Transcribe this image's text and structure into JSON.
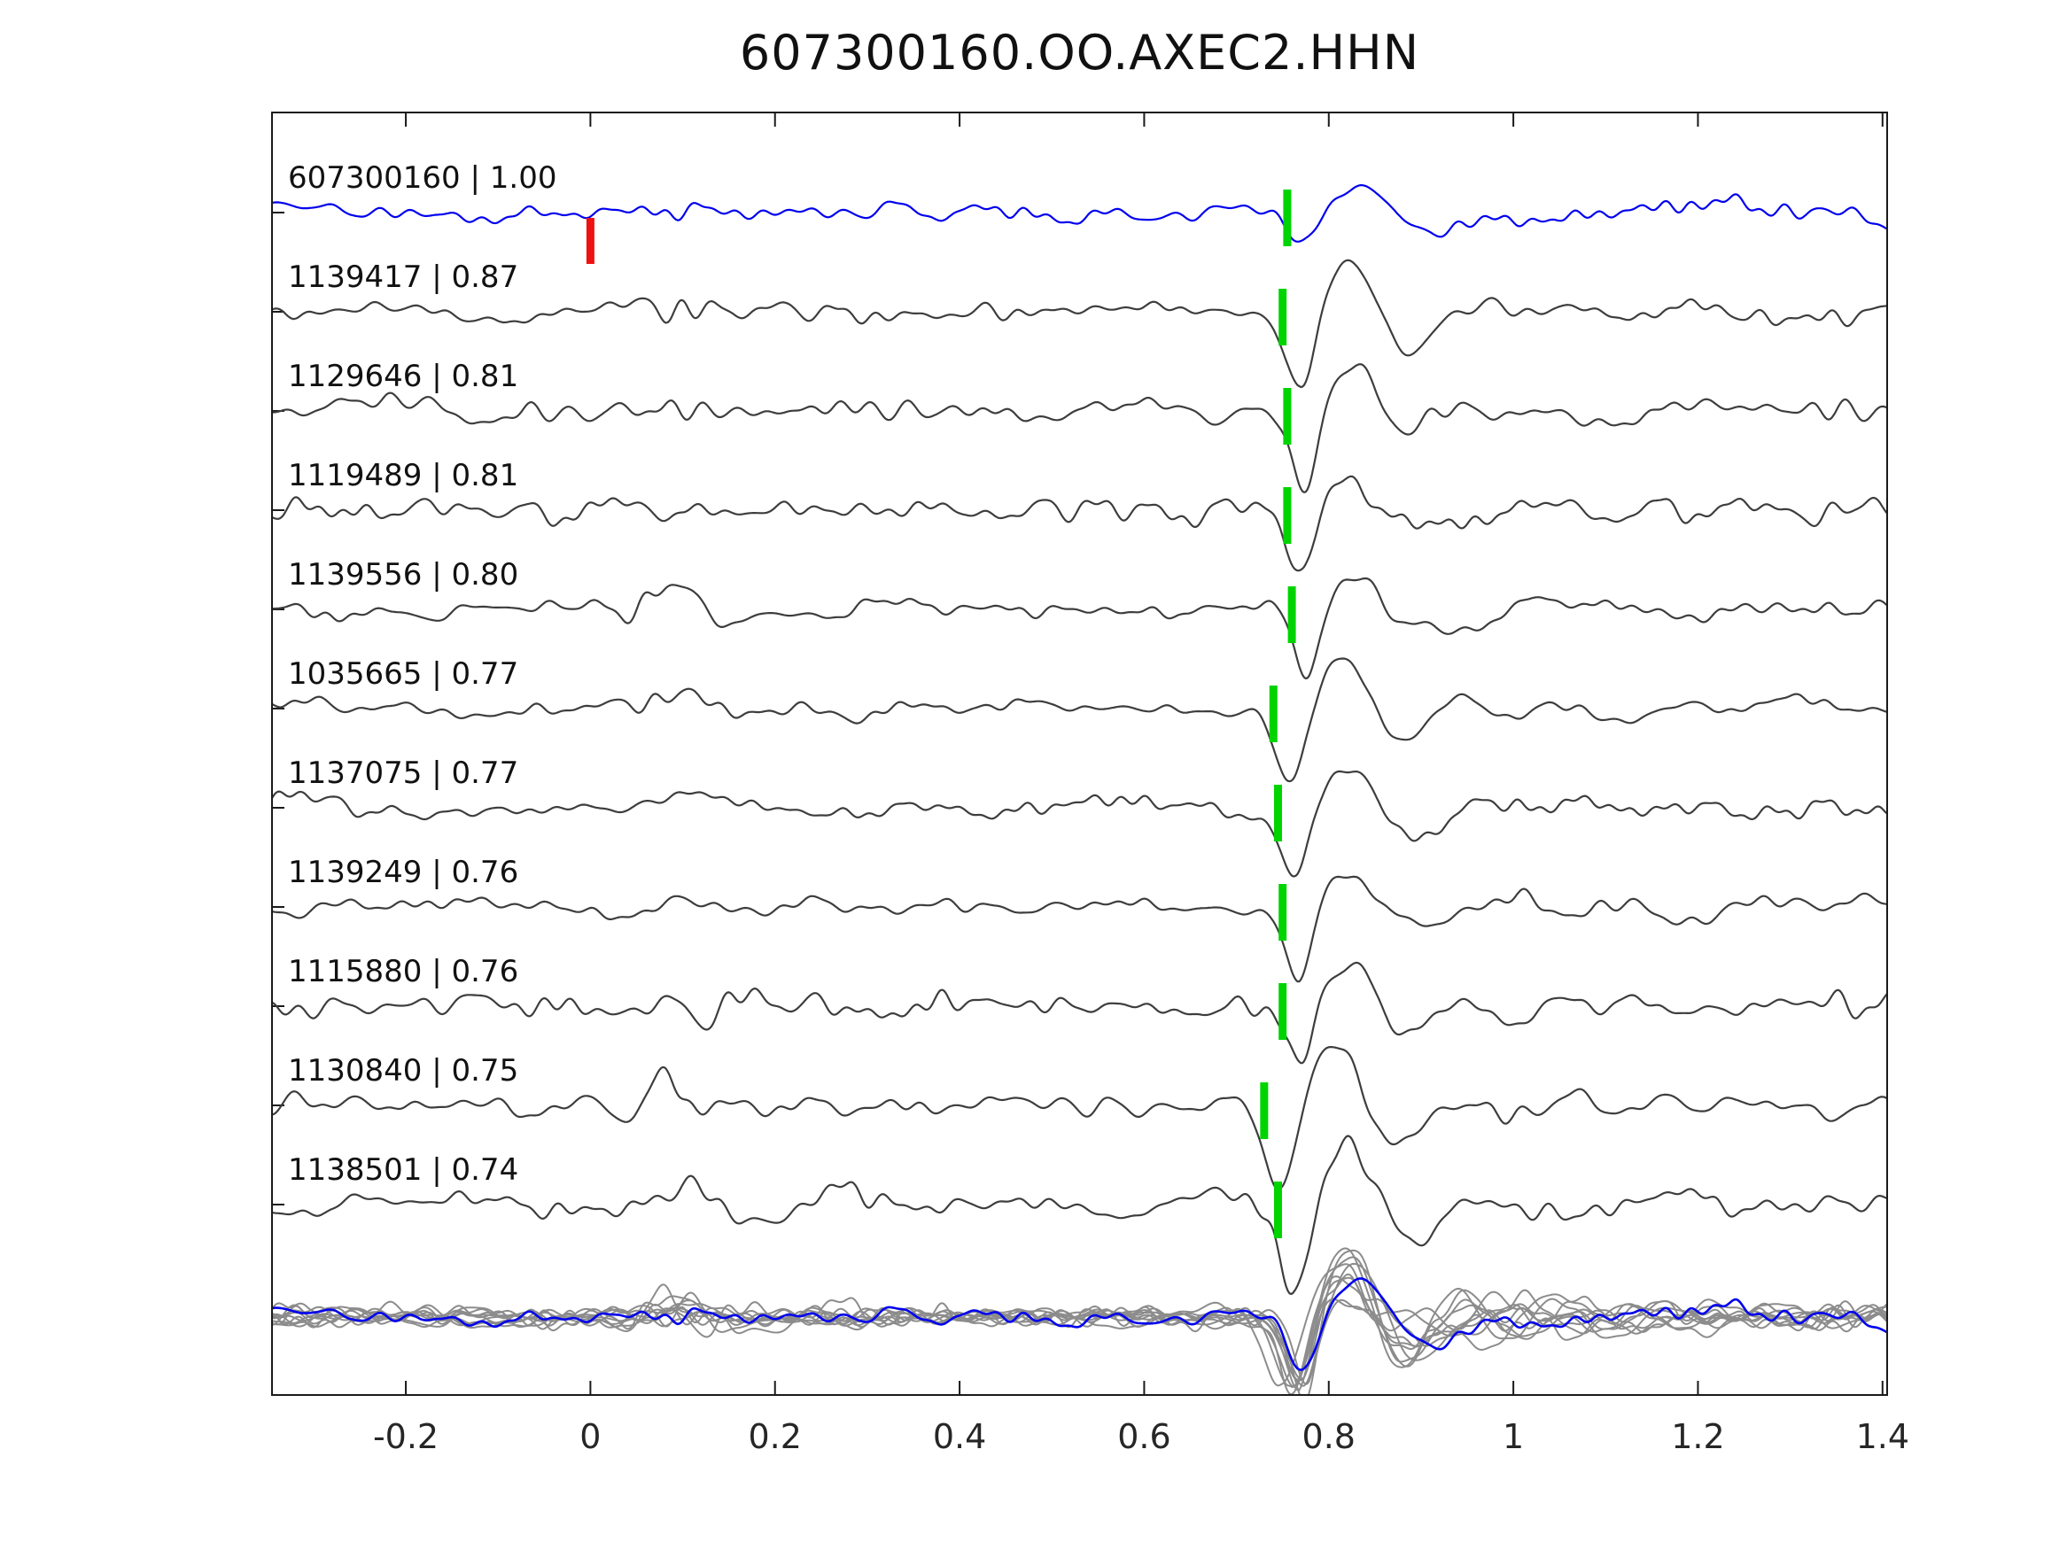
{
  "title": "607300160.OO.AXEC2.HHN",
  "colors": {
    "background": "#ffffff",
    "axis": "#1a1a1a",
    "reference_trace": "#0000ee",
    "match_trace": "#3d3d3d",
    "overlay_trace": "#8c8c8c",
    "pick_marker": "#00d400",
    "reference_marker": "#ee1111",
    "label_text": "#111111",
    "tick_text": "#262626"
  },
  "chart_data": {
    "type": "line",
    "title": "607300160.OO.AXEC2.HHN",
    "description": "Waveform similarity plot: reference trace 607300160 (blue) on top with red zero-time marker, followed by 10 matched event traces (dark gray) labeled 'event id | correlation'. Green vertical ticks mark the aligned pick time near x = 0.75. Bottom row shows all traces superimposed (gray) with the reference trace overlaid in blue.",
    "xlim": [
      -0.345,
      1.405
    ],
    "x_ticks": [
      -0.2,
      0,
      0.2,
      0.4,
      0.6,
      0.8,
      1,
      1.2,
      1.4
    ],
    "x_tick_labels": [
      "-0.2",
      "0",
      "0.2",
      "0.4",
      "0.6",
      "0.8",
      "1",
      "1.2",
      "1.4"
    ],
    "traces": [
      {
        "id": "607300160",
        "correlation": "1.00",
        "label": "607300160 | 1.00",
        "color": "#0000ee",
        "pick_x": 0.755,
        "ref_marker_x": 0,
        "seed": 101,
        "noise_amp": 6.5,
        "event_amp": 50,
        "burst": 0.3
      },
      {
        "id": "1139417",
        "correlation": "0.87",
        "label": "1139417 | 0.87",
        "color": "#3d3d3d",
        "pick_x": 0.75,
        "seed": 102,
        "noise_amp": 5.5,
        "event_amp": 88,
        "burst": 0.7
      },
      {
        "id": "1129646",
        "correlation": "0.81",
        "label": "1129646 | 0.81",
        "color": "#3d3d3d",
        "pick_x": 0.755,
        "seed": 103,
        "noise_amp": 7.5,
        "event_amp": 72,
        "burst": 0.5
      },
      {
        "id": "1119489",
        "correlation": "0.81",
        "label": "1119489 | 0.81",
        "color": "#3d3d3d",
        "pick_x": 0.755,
        "seed": 104,
        "noise_amp": 7.0,
        "event_amp": 74,
        "burst": 0.4
      },
      {
        "id": "1139556",
        "correlation": "0.80",
        "label": "1139556 | 0.80",
        "color": "#3d3d3d",
        "pick_x": 0.76,
        "seed": 105,
        "noise_amp": 6.5,
        "event_amp": 80,
        "burst": 1.1
      },
      {
        "id": "1035665",
        "correlation": "0.77",
        "label": "1035665 | 0.77",
        "color": "#3d3d3d",
        "pick_x": 0.74,
        "seed": 106,
        "noise_amp": 6.0,
        "event_amp": 82,
        "burst": 0.9
      },
      {
        "id": "1137075",
        "correlation": "0.77",
        "label": "1137075 | 0.77",
        "color": "#3d3d3d",
        "pick_x": 0.745,
        "seed": 107,
        "noise_amp": 6.0,
        "event_amp": 76,
        "burst": 0.8
      },
      {
        "id": "1139249",
        "correlation": "0.76",
        "label": "1139249 | 0.76",
        "color": "#3d3d3d",
        "pick_x": 0.75,
        "seed": 108,
        "noise_amp": 6.0,
        "event_amp": 78,
        "burst": 0.5
      },
      {
        "id": "1115880",
        "correlation": "0.76",
        "label": "1115880 | 0.76",
        "color": "#3d3d3d",
        "pick_x": 0.75,
        "seed": 109,
        "noise_amp": 7.5,
        "event_amp": 72,
        "burst": 0.6
      },
      {
        "id": "1130840",
        "correlation": "0.75",
        "label": "1130840 | 0.75",
        "color": "#3d3d3d",
        "pick_x": 0.73,
        "seed": 110,
        "noise_amp": 7.0,
        "event_amp": 96,
        "burst": 1.2
      },
      {
        "id": "1138501",
        "correlation": "0.74",
        "label": "1138501 | 0.74",
        "color": "#3d3d3d",
        "pick_x": 0.745,
        "seed": 111,
        "noise_amp": 9.5,
        "event_amp": 90,
        "burst": 0.8
      }
    ],
    "overlay": {
      "includes": "all 11 traces superimposed, reference trace drawn in blue on top",
      "noise_scale": 0.85,
      "event_amp": 78
    }
  }
}
